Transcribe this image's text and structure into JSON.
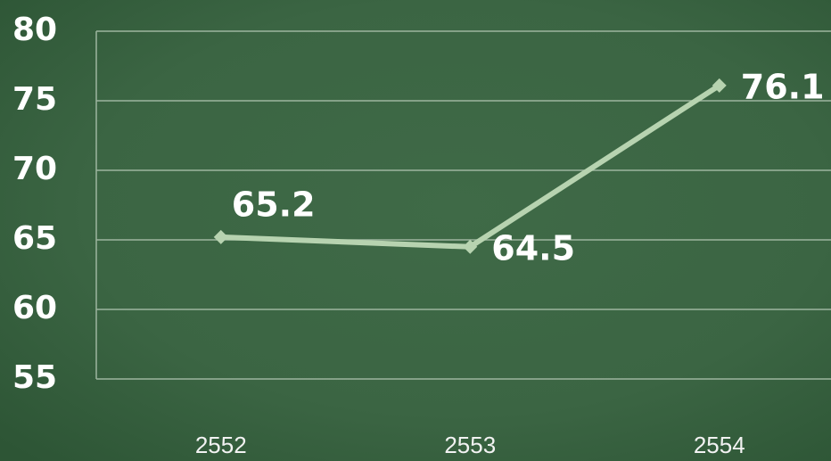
{
  "chart_data": {
    "type": "line",
    "categories": [
      "2552",
      "2553",
      "2554"
    ],
    "values": [
      65.2,
      64.5,
      76.1
    ],
    "color": "#b7d3b0",
    "ylim": [
      55,
      80
    ],
    "yticks": [
      55,
      60,
      65,
      70,
      75,
      80
    ],
    "grid": true
  }
}
